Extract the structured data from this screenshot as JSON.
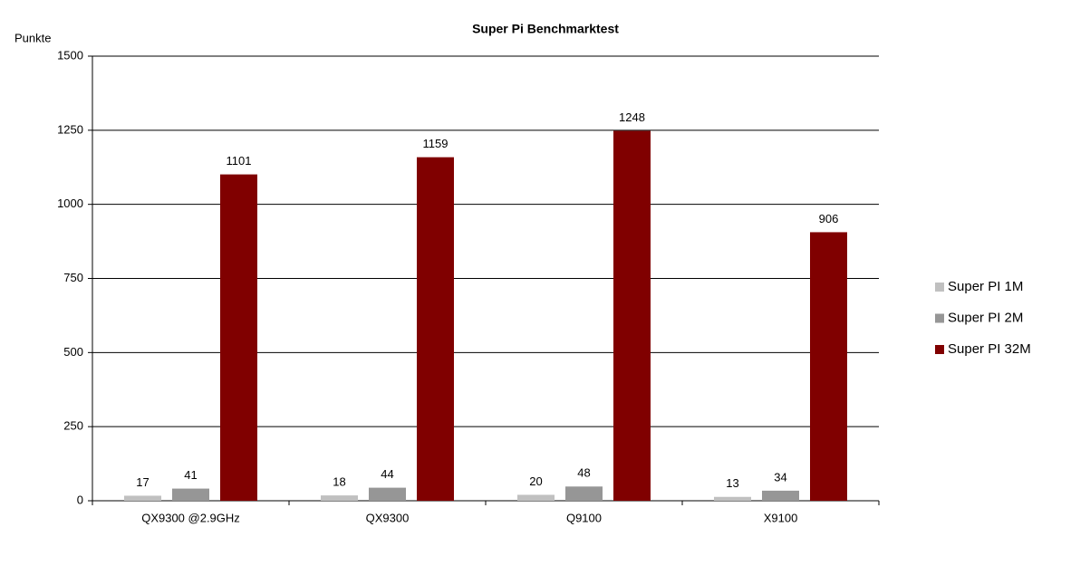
{
  "chart_data": {
    "type": "bar",
    "title": "Super Pi Benchmarktest",
    "y_label": "Punkte",
    "categories": [
      "QX9300 @2.9GHz",
      "QX9300",
      "Q9100",
      "X9100"
    ],
    "series": [
      {
        "name": "Super PI 1M",
        "color": "#c0c0c0",
        "values": [
          17,
          18,
          20,
          13
        ]
      },
      {
        "name": "Super PI 2M",
        "color": "#969696",
        "values": [
          41,
          44,
          48,
          34
        ]
      },
      {
        "name": "Super PI 32M",
        "color": "#800000",
        "values": [
          1101,
          1159,
          1248,
          906
        ]
      }
    ],
    "ylim": [
      0,
      1500
    ],
    "yticks": [
      0,
      250,
      500,
      750,
      1000,
      1250,
      1500
    ],
    "grid": true,
    "legend": "right"
  }
}
